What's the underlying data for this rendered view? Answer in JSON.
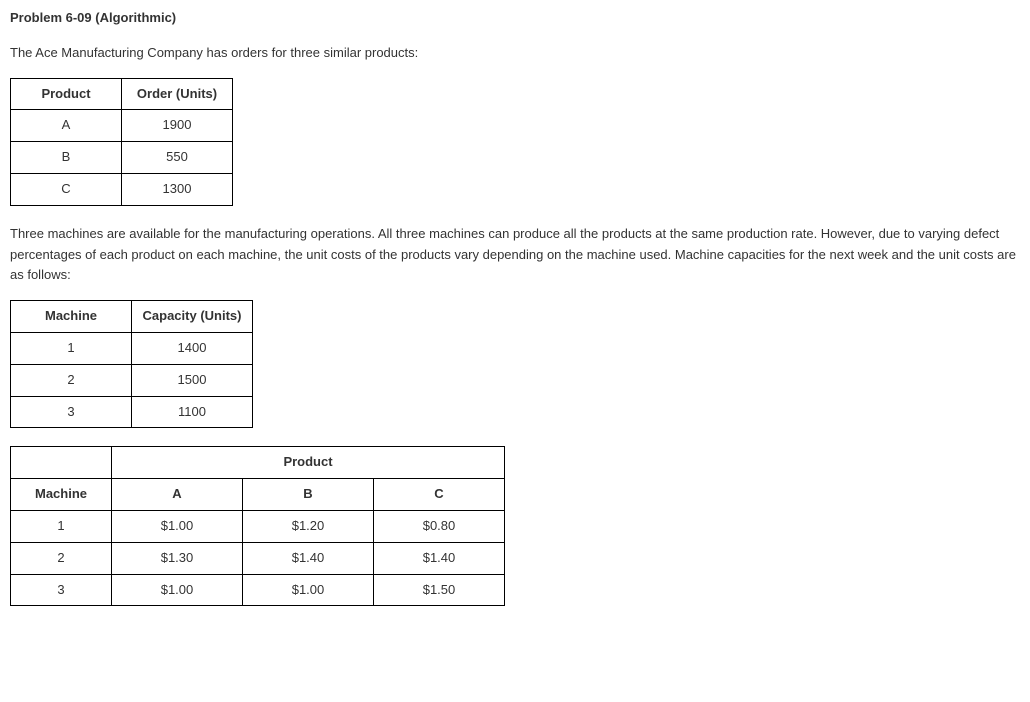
{
  "title": "Problem 6-09 (Algorithmic)",
  "intro": "The Ace Manufacturing Company has orders for three similar products:",
  "orders_table": {
    "headers": {
      "product": "Product",
      "units": "Order (Units)"
    },
    "rows": [
      {
        "product": "A",
        "units": "1900"
      },
      {
        "product": "B",
        "units": "550"
      },
      {
        "product": "C",
        "units": "1300"
      }
    ]
  },
  "middle_text": "Three machines are available for the manufacturing operations. All three machines can produce all the products at the same production rate. However, due to varying defect percentages of each product on each machine, the unit costs of the products vary depending on the machine used. Machine capacities for the next week and the unit costs are as follows:",
  "capacity_table": {
    "headers": {
      "machine": "Machine",
      "capacity": "Capacity (Units)"
    },
    "rows": [
      {
        "machine": "1",
        "capacity": "1400"
      },
      {
        "machine": "2",
        "capacity": "1500"
      },
      {
        "machine": "3",
        "capacity": "1100"
      }
    ]
  },
  "cost_table": {
    "super_header": "Product",
    "headers": {
      "machine": "Machine",
      "a": "A",
      "b": "B",
      "c": "C"
    },
    "rows": [
      {
        "machine": "1",
        "a": "$1.00",
        "b": "$1.20",
        "c": "$0.80"
      },
      {
        "machine": "2",
        "a": "$1.30",
        "b": "$1.40",
        "c": "$1.40"
      },
      {
        "machine": "3",
        "a": "$1.00",
        "b": "$1.00",
        "c": "$1.50"
      }
    ]
  }
}
